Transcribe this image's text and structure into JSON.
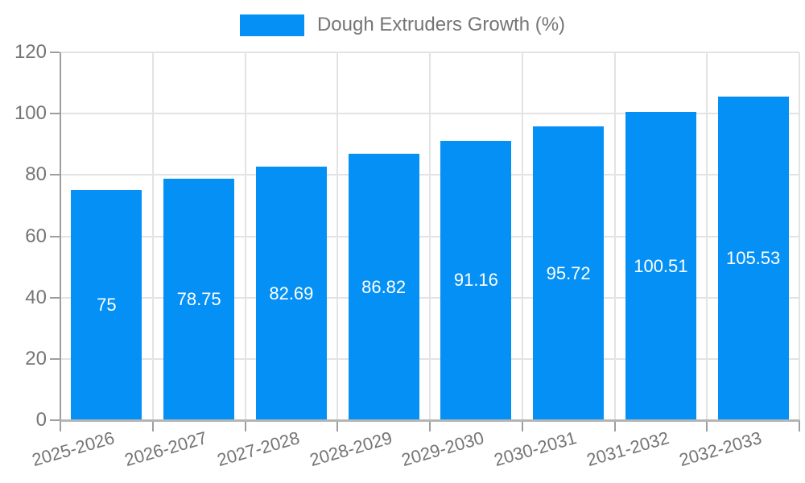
{
  "legend": {
    "label": "Dough Extruders Growth (%)"
  },
  "colors": {
    "bar": "#0590f5",
    "grid": "#e3e3e3",
    "axis": "#9e9e9e",
    "baseline": "#b5b5b5",
    "text": "#757575",
    "value_text": "#ffffff",
    "background": "#ffffff"
  },
  "chart_data": {
    "type": "bar",
    "title": "",
    "xlabel": "",
    "ylabel": "",
    "categories": [
      "2025-2026",
      "2026-2027",
      "2027-2028",
      "2028-2029",
      "2029-2030",
      "2030-2031",
      "2031-2032",
      "2032-2033"
    ],
    "series": [
      {
        "name": "Dough Extruders Growth (%)",
        "values": [
          75,
          78.75,
          82.69,
          86.82,
          91.16,
          95.72,
          100.51,
          105.53
        ]
      }
    ],
    "value_labels": [
      "75",
      "78.75",
      "82.69",
      "86.82",
      "91.16",
      "95.72",
      "100.51",
      "105.53"
    ],
    "ylim": [
      0,
      120
    ],
    "yticks": [
      0,
      20,
      40,
      60,
      80,
      100,
      120
    ],
    "grid": true,
    "legend_position": "top-center",
    "x_label_rotation_deg": -16,
    "value_label_position": "center-of-bar"
  }
}
